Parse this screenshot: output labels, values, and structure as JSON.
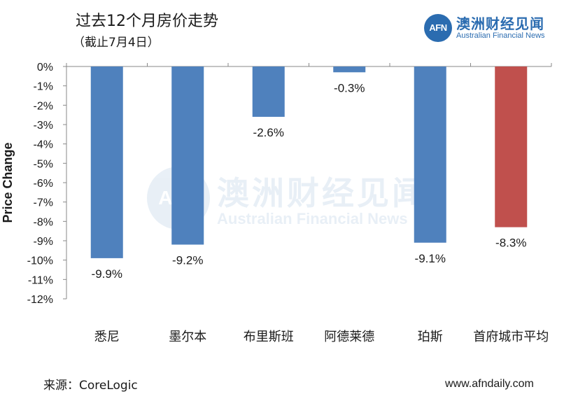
{
  "header": {
    "title": "过去12个月房价走势",
    "subtitle": "（截止7月4日）"
  },
  "logo": {
    "mark": "AFN",
    "name_cn": "澳洲财经见闻",
    "name_en": "Australian Financial News"
  },
  "footer": {
    "source": "来源：CoreLogic",
    "website": "www.afndaily.com"
  },
  "colors": {
    "bar_blue": "#4f81bd",
    "bar_red": "#c0504d"
  },
  "chart_data": {
    "type": "bar",
    "title": "",
    "xlabel": "",
    "ylabel": "Price Change",
    "ylim": [
      -12,
      0
    ],
    "yticks": [
      0,
      -1,
      -2,
      -3,
      -4,
      -5,
      -6,
      -7,
      -8,
      -9,
      -10,
      -11,
      -12
    ],
    "ytick_labels": [
      "0%",
      "-1%",
      "-2%",
      "-3%",
      "-4%",
      "-5%",
      "-6%",
      "-7%",
      "-8%",
      "-9%",
      "-10%",
      "-11%",
      "-12%"
    ],
    "categories": [
      "悉尼",
      "墨尔本",
      "布里斯班",
      "阿德莱德",
      "珀斯",
      "首府城市平均"
    ],
    "values": [
      -9.9,
      -9.2,
      -2.6,
      -0.3,
      -9.1,
      -8.3
    ],
    "data_labels": [
      "-9.9%",
      "-9.2%",
      "-2.6%",
      "-0.3%",
      "-9.1%",
      "-8.3%"
    ],
    "bar_colors": [
      "#4f81bd",
      "#4f81bd",
      "#4f81bd",
      "#4f81bd",
      "#4f81bd",
      "#c0504d"
    ],
    "grid": false,
    "legend": "none"
  }
}
